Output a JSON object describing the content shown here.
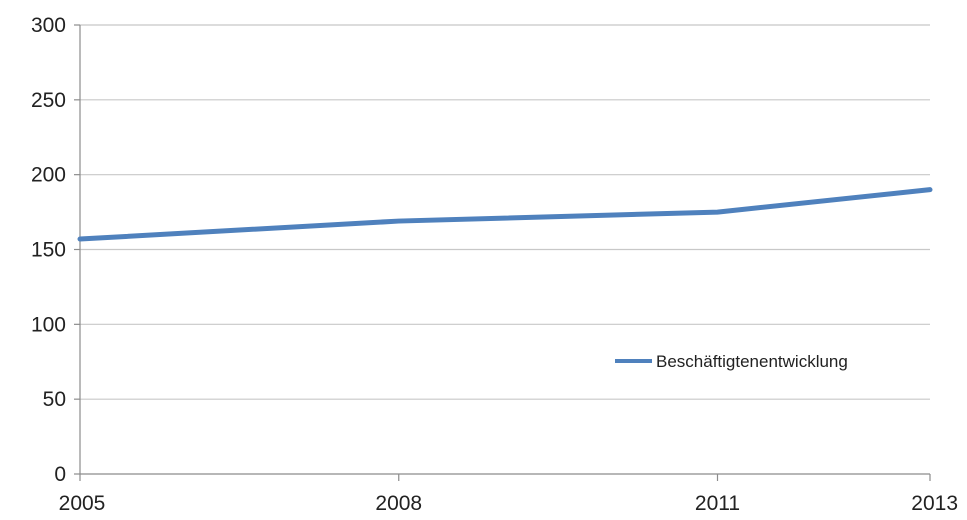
{
  "chart_data": {
    "type": "line",
    "x": [
      "2005",
      "2008",
      "2011",
      "2013"
    ],
    "x_numeric": [
      2005,
      2008,
      2011,
      2013
    ],
    "series": [
      {
        "name": "Beschäftigtenentwicklung",
        "values": [
          157,
          169,
          175,
          190
        ],
        "color": "#4f81bd"
      }
    ],
    "yticks": [
      "0",
      "50",
      "100",
      "150",
      "200",
      "250",
      "300"
    ],
    "ylim": [
      0,
      300
    ],
    "grid": true,
    "legend_position": "right"
  }
}
